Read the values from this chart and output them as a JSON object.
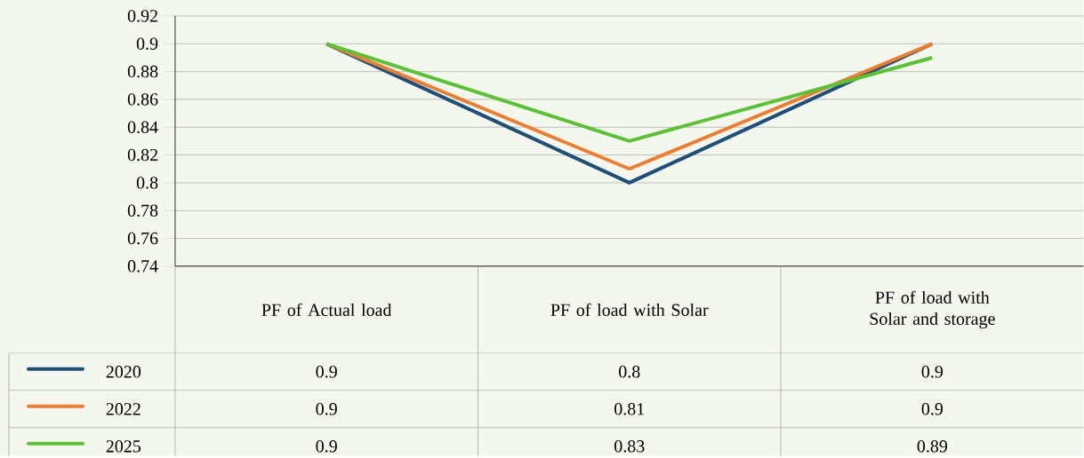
{
  "chart_data": {
    "type": "line",
    "categories": [
      "PF of Actual load",
      "PF of load with Solar",
      "PF of load with Solar and storage"
    ],
    "series": [
      {
        "name": "2020",
        "color": "#1f4e79",
        "values": [
          0.9,
          0.8,
          0.9
        ]
      },
      {
        "name": "2022",
        "color": "#ed7d31",
        "values": [
          0.9,
          0.81,
          0.9
        ]
      },
      {
        "name": "2025",
        "color": "#5bc236",
        "values": [
          0.9,
          0.83,
          0.89
        ]
      }
    ],
    "ylim": [
      0.74,
      0.92
    ],
    "yticks": [
      0.74,
      0.76,
      0.78,
      0.8,
      0.82,
      0.84,
      0.86,
      0.88,
      0.9,
      0.92
    ],
    "grid": "y",
    "legend": "bottom",
    "data_labels": true
  }
}
